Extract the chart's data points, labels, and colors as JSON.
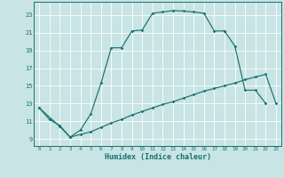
{
  "xlabel": "Humidex (Indice chaleur)",
  "xlim": [
    -0.5,
    23.5
  ],
  "ylim": [
    8.2,
    24.5
  ],
  "yticks": [
    9,
    11,
    13,
    15,
    17,
    19,
    21,
    23
  ],
  "xticks": [
    0,
    1,
    2,
    3,
    4,
    5,
    6,
    7,
    8,
    9,
    10,
    11,
    12,
    13,
    14,
    15,
    16,
    17,
    18,
    19,
    20,
    21,
    22,
    23
  ],
  "bg_color": "#c8e4e4",
  "line_color": "#1a7070",
  "grid_color": "#afd4d4",
  "curve1_x": [
    0,
    1,
    2,
    3,
    4,
    5,
    6,
    7,
    8,
    9,
    10,
    11,
    12,
    13,
    14,
    15,
    16,
    17,
    18
  ],
  "curve1_y": [
    12.5,
    11.2,
    10.5,
    9.2,
    10.0,
    11.8,
    15.3,
    19.3,
    19.3,
    21.2,
    21.3,
    23.2,
    23.35,
    23.5,
    23.45,
    23.35,
    23.2,
    21.2,
    21.2
  ],
  "curve2_x": [
    18,
    19,
    20,
    21,
    22
  ],
  "curve2_y": [
    21.2,
    19.5,
    14.5,
    14.5,
    13.0
  ],
  "curve3_x": [
    0,
    2,
    3,
    4,
    5,
    6,
    7,
    8,
    9,
    10,
    11,
    12,
    13,
    14,
    15,
    16,
    17,
    18,
    19,
    20,
    21,
    22,
    23
  ],
  "curve3_y": [
    12.5,
    10.4,
    9.2,
    9.5,
    9.8,
    10.3,
    10.8,
    11.2,
    11.7,
    12.1,
    12.5,
    12.9,
    13.2,
    13.6,
    14.0,
    14.4,
    14.7,
    15.0,
    15.3,
    15.7,
    16.0,
    16.3,
    13.0
  ]
}
